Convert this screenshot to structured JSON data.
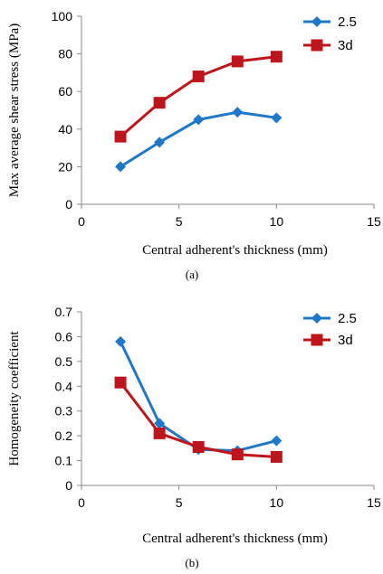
{
  "chart_data": [
    {
      "type": "line",
      "title": "",
      "caption": "(a)",
      "xlabel": "Central adherent's thickness (mm)",
      "ylabel": "Max average shear stress (MPa)",
      "xlim": [
        0,
        15
      ],
      "ylim": [
        0,
        100
      ],
      "xticks": [
        "0",
        "5",
        "10",
        "15"
      ],
      "yticks": [
        "0",
        "20",
        "40",
        "60",
        "80",
        "100"
      ],
      "grid": false,
      "legend": "top-right",
      "series": [
        {
          "name": "2.5",
          "color": "#1f77c8",
          "marker": "diamond",
          "x": [
            2,
            4,
            6,
            8,
            10
          ],
          "y": [
            20,
            33,
            45,
            49,
            46
          ]
        },
        {
          "name": "3d",
          "color": "#c0141c",
          "marker": "square",
          "x": [
            2,
            4,
            6,
            8,
            10
          ],
          "y": [
            36,
            54,
            68,
            76,
            78.5
          ]
        }
      ]
    },
    {
      "type": "line",
      "title": "",
      "caption": "(b)",
      "xlabel": "Central adherent's thickness (mm)",
      "ylabel": "Homogeneity coefficient",
      "xlim": [
        0,
        15
      ],
      "ylim": [
        0,
        0.7
      ],
      "xticks": [
        "0",
        "5",
        "10",
        "15"
      ],
      "yticks": [
        "0",
        "0.1",
        "0.2",
        "0.3",
        "0.4",
        "0.5",
        "0.6",
        "0.7"
      ],
      "grid": false,
      "legend": "top-right",
      "series": [
        {
          "name": "2.5",
          "color": "#1f77c8",
          "marker": "diamond",
          "x": [
            2,
            4,
            6,
            8,
            10
          ],
          "y": [
            0.58,
            0.25,
            0.145,
            0.14,
            0.18
          ]
        },
        {
          "name": "3d",
          "color": "#c0141c",
          "marker": "square",
          "x": [
            2,
            4,
            6,
            8,
            10
          ],
          "y": [
            0.415,
            0.21,
            0.155,
            0.125,
            0.115
          ]
        }
      ]
    }
  ]
}
